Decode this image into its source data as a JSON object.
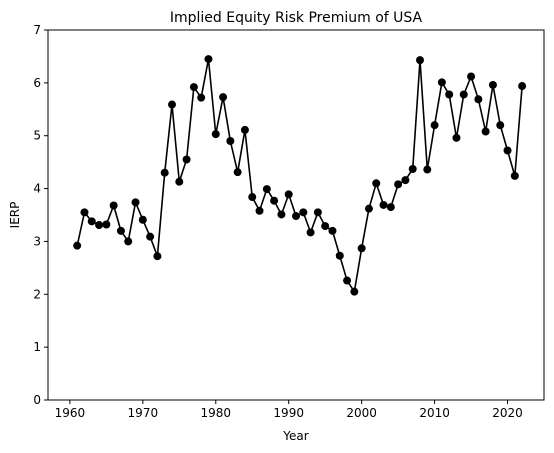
{
  "chart_data": {
    "type": "line",
    "title": "Implied Equity Risk Premium of USA",
    "xlabel": "Year",
    "ylabel": "IERP",
    "xlim": [
      1957,
      2025
    ],
    "ylim": [
      0,
      7
    ],
    "xticks": [
      1960,
      1970,
      1980,
      1990,
      2000,
      2010,
      2020
    ],
    "yticks": [
      0,
      1,
      2,
      3,
      4,
      5,
      6,
      7
    ],
    "grid": false,
    "series": [
      {
        "color": "#000000",
        "marker": "circle",
        "x": [
          1961,
          1962,
          1963,
          1964,
          1965,
          1966,
          1967,
          1968,
          1969,
          1970,
          1971,
          1972,
          1973,
          1974,
          1975,
          1976,
          1977,
          1978,
          1979,
          1980,
          1981,
          1982,
          1983,
          1984,
          1985,
          1986,
          1987,
          1988,
          1989,
          1990,
          1991,
          1992,
          1993,
          1994,
          1995,
          1996,
          1997,
          1998,
          1999,
          2000,
          2001,
          2002,
          2003,
          2004,
          2005,
          2006,
          2007,
          2008,
          2009,
          2010,
          2011,
          2012,
          2013,
          2014,
          2015,
          2016,
          2017,
          2018,
          2019,
          2020,
          2021,
          2022
        ],
        "y": [
          2.92,
          3.55,
          3.38,
          3.31,
          3.32,
          3.68,
          3.2,
          3.0,
          3.74,
          3.41,
          3.09,
          2.72,
          4.3,
          5.59,
          4.13,
          4.55,
          5.92,
          5.72,
          6.45,
          5.03,
          5.73,
          4.9,
          4.31,
          5.11,
          3.84,
          3.58,
          3.99,
          3.77,
          3.51,
          3.89,
          3.48,
          3.55,
          3.17,
          3.55,
          3.29,
          3.2,
          2.73,
          2.26,
          2.05,
          2.87,
          3.62,
          4.1,
          3.69,
          3.65,
          4.08,
          4.16,
          4.37,
          6.43,
          4.36,
          5.2,
          6.01,
          5.78,
          4.96,
          5.78,
          6.12,
          5.69,
          5.08,
          5.96,
          5.2,
          4.72,
          4.24,
          5.94
        ]
      }
    ]
  }
}
